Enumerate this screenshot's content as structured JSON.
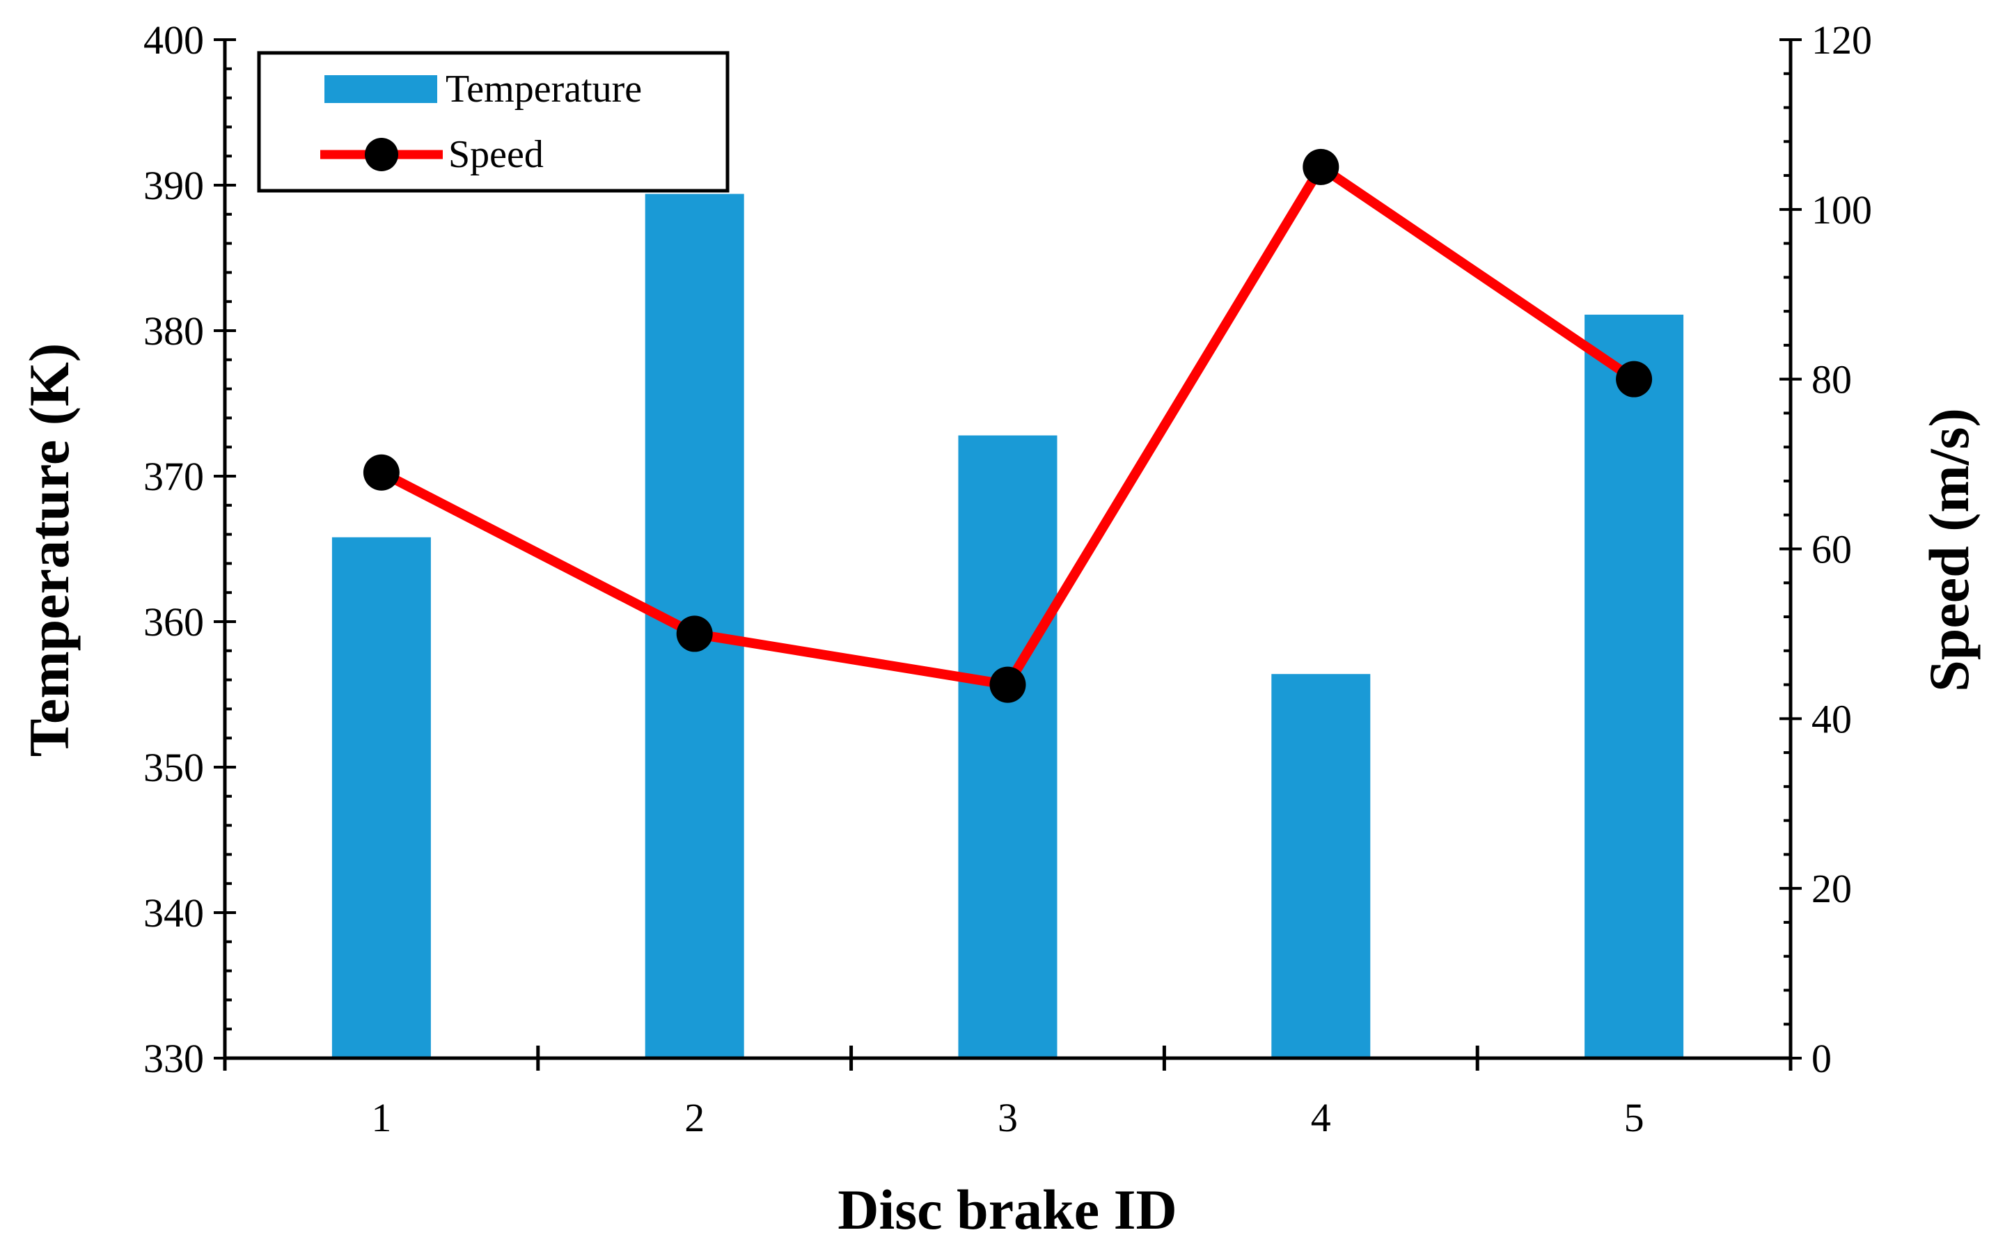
{
  "chart_data": {
    "type": "bar+line",
    "categories": [
      "1",
      "2",
      "3",
      "4",
      "5"
    ],
    "series": [
      {
        "name": "Temperature",
        "type": "bar",
        "axis": "left",
        "color": "#1a9ad6",
        "values": [
          365.8,
          389.4,
          372.8,
          356.4,
          381.1
        ]
      },
      {
        "name": "Speed",
        "type": "line",
        "axis": "right",
        "color": "#ff0000",
        "marker_color": "#000000",
        "values": [
          69,
          50,
          44,
          105,
          80
        ]
      }
    ],
    "xlabel": "Disc brake ID",
    "ylabel": "Temperature (K)",
    "y2label": "Speed (m/s)",
    "ylim": [
      330,
      400
    ],
    "yticks": [
      "330",
      "340",
      "350",
      "360",
      "370",
      "380",
      "390",
      "400"
    ],
    "y2lim": [
      0,
      120
    ],
    "y2ticks": [
      "0",
      "20",
      "40",
      "60",
      "80",
      "100",
      "120"
    ],
    "legend": {
      "position": "top-left",
      "entries": [
        "Temperature",
        "Speed"
      ]
    },
    "grid": false
  }
}
